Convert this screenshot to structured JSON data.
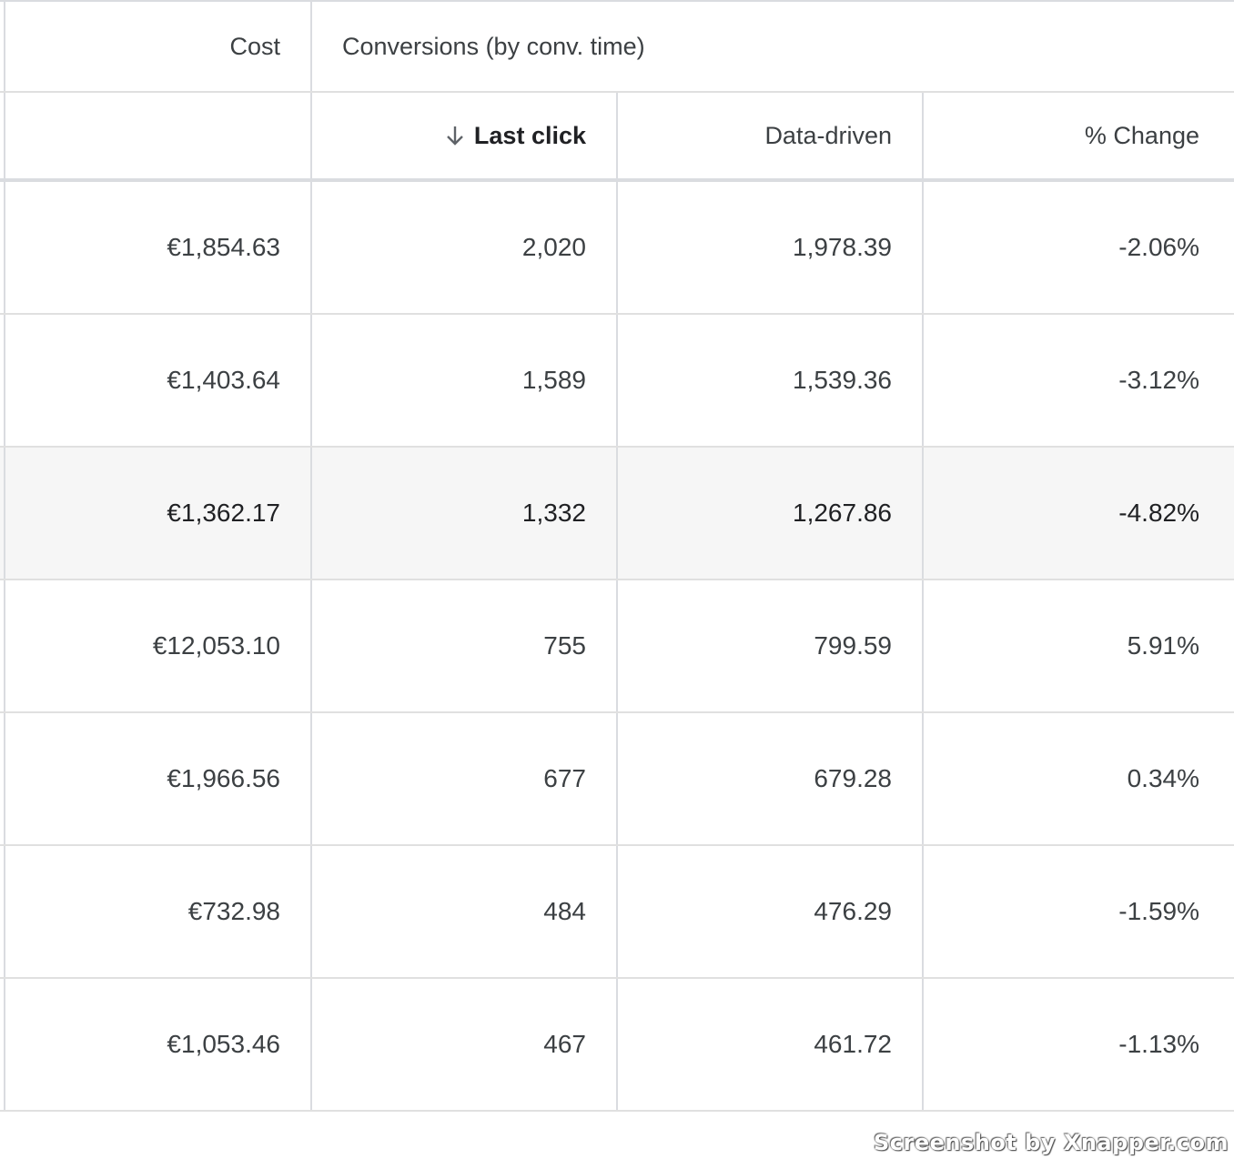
{
  "header": {
    "cost_label": "Cost",
    "group_label": "Conversions (by conv. time)",
    "columns": {
      "last_click": "Last click",
      "data_driven": "Data-driven",
      "percent_change": "% Change"
    },
    "sort_icon": "arrow-down-icon"
  },
  "rows": [
    {
      "cost": "€1,854.63",
      "last_click": "2,020",
      "data_driven": "1,978.39",
      "change": "-2.06%"
    },
    {
      "cost": "€1,403.64",
      "last_click": "1,589",
      "data_driven": "1,539.36",
      "change": "-3.12%"
    },
    {
      "cost": "€1,362.17",
      "last_click": "1,332",
      "data_driven": "1,267.86",
      "change": "-4.82%"
    },
    {
      "cost": "€12,053.10",
      "last_click": "755",
      "data_driven": "799.59",
      "change": "5.91%"
    },
    {
      "cost": "€1,966.56",
      "last_click": "677",
      "data_driven": "679.28",
      "change": "0.34%"
    },
    {
      "cost": "€732.98",
      "last_click": "484",
      "data_driven": "476.29",
      "change": "-1.59%"
    },
    {
      "cost": "€1,053.46",
      "last_click": "467",
      "data_driven": "461.72",
      "change": "-1.13%"
    }
  ],
  "highlighted_row": 2,
  "colors": {
    "border": "#dadce0",
    "highlight": "#f6f6f6",
    "text": "#3c4043"
  },
  "watermark": "Screenshot by Xnapper.com"
}
